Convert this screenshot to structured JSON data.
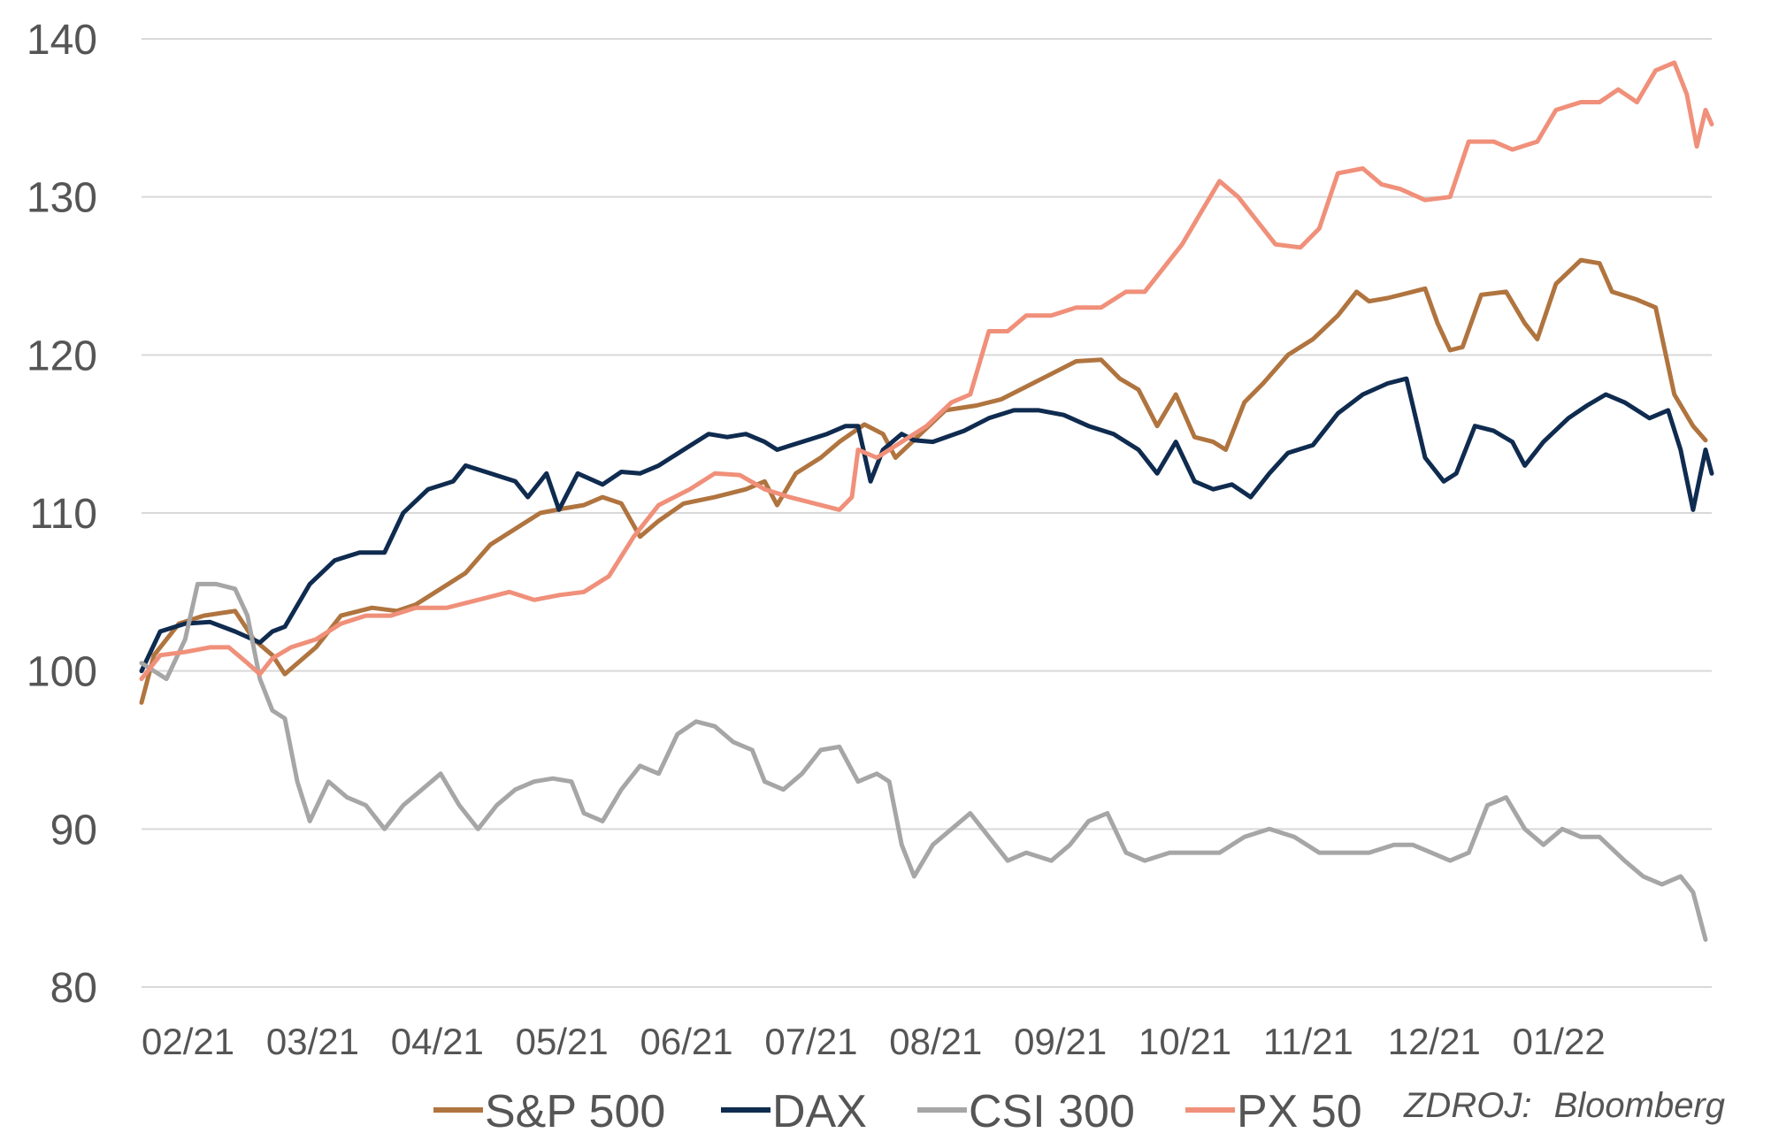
{
  "chart_data": {
    "type": "line",
    "title": "",
    "xlabel": "",
    "ylabel": "",
    "ylim": [
      80,
      140
    ],
    "yticks": [
      80,
      90,
      100,
      110,
      120,
      130,
      140
    ],
    "xtick_labels": [
      "02/21",
      "03/21",
      "04/21",
      "05/21",
      "06/21",
      "07/21",
      "08/21",
      "09/21",
      "10/21",
      "11/21",
      "12/21",
      "01/22"
    ],
    "grid": "horizontal",
    "legend_position": "bottom",
    "source_prefix": "ZDROJ:",
    "source_name": "Bloomberg",
    "series": [
      {
        "name": "S&P 500",
        "color": "#b0743f",
        "values": [
          [
            0,
            98
          ],
          [
            0.1,
            101
          ],
          [
            0.3,
            103
          ],
          [
            0.5,
            103.5
          ],
          [
            0.75,
            103.8
          ],
          [
            0.9,
            102
          ],
          [
            1.05,
            101
          ],
          [
            1.15,
            99.8
          ],
          [
            1.4,
            101.5
          ],
          [
            1.6,
            103.5
          ],
          [
            1.85,
            104
          ],
          [
            2.05,
            103.8
          ],
          [
            2.2,
            104.2
          ],
          [
            2.4,
            105.2
          ],
          [
            2.6,
            106.2
          ],
          [
            2.8,
            108
          ],
          [
            3.0,
            109
          ],
          [
            3.2,
            110
          ],
          [
            3.4,
            110.3
          ],
          [
            3.55,
            110.5
          ],
          [
            3.7,
            111
          ],
          [
            3.85,
            110.6
          ],
          [
            4.0,
            108.5
          ],
          [
            4.15,
            109.5
          ],
          [
            4.35,
            110.6
          ],
          [
            4.6,
            111
          ],
          [
            4.85,
            111.5
          ],
          [
            5.0,
            112
          ],
          [
            5.1,
            110.5
          ],
          [
            5.25,
            112.5
          ],
          [
            5.45,
            113.5
          ],
          [
            5.6,
            114.5
          ],
          [
            5.8,
            115.6
          ],
          [
            5.95,
            115
          ],
          [
            6.05,
            113.5
          ],
          [
            6.25,
            115
          ],
          [
            6.45,
            116.5
          ],
          [
            6.7,
            116.8
          ],
          [
            6.9,
            117.2
          ],
          [
            7.1,
            118
          ],
          [
            7.3,
            118.8
          ],
          [
            7.5,
            119.6
          ],
          [
            7.7,
            119.7
          ],
          [
            7.85,
            118.5
          ],
          [
            8.0,
            117.8
          ],
          [
            8.15,
            115.5
          ],
          [
            8.3,
            117.5
          ],
          [
            8.45,
            114.8
          ],
          [
            8.6,
            114.5
          ],
          [
            8.7,
            114
          ],
          [
            8.85,
            117
          ],
          [
            9.0,
            118.2
          ],
          [
            9.2,
            120
          ],
          [
            9.4,
            121
          ],
          [
            9.6,
            122.5
          ],
          [
            9.75,
            124
          ],
          [
            9.85,
            123.4
          ],
          [
            10.0,
            123.6
          ],
          [
            10.2,
            124
          ],
          [
            10.3,
            124.2
          ],
          [
            10.4,
            122
          ],
          [
            10.5,
            120.3
          ],
          [
            10.6,
            120.5
          ],
          [
            10.75,
            123.8
          ],
          [
            10.95,
            124
          ],
          [
            11.1,
            122
          ],
          [
            11.2,
            121
          ],
          [
            11.35,
            124.5
          ],
          [
            11.55,
            126
          ],
          [
            11.7,
            125.8
          ],
          [
            11.8,
            124
          ],
          [
            12.0,
            123.5
          ],
          [
            12.15,
            123
          ],
          [
            12.3,
            117.5
          ],
          [
            12.45,
            115.5
          ],
          [
            12.55,
            114.6
          ]
        ]
      },
      {
        "name": "DAX",
        "color": "#0f2b4f",
        "values": [
          [
            0,
            100
          ],
          [
            0.15,
            102.5
          ],
          [
            0.35,
            103
          ],
          [
            0.55,
            103.1
          ],
          [
            0.75,
            102.5
          ],
          [
            0.95,
            101.8
          ],
          [
            1.05,
            102.5
          ],
          [
            1.15,
            102.8
          ],
          [
            1.35,
            105.5
          ],
          [
            1.55,
            107
          ],
          [
            1.75,
            107.5
          ],
          [
            1.95,
            107.5
          ],
          [
            2.1,
            110
          ],
          [
            2.3,
            111.5
          ],
          [
            2.5,
            112
          ],
          [
            2.6,
            113
          ],
          [
            2.8,
            112.5
          ],
          [
            3.0,
            112
          ],
          [
            3.1,
            111
          ],
          [
            3.25,
            112.5
          ],
          [
            3.35,
            110.2
          ],
          [
            3.5,
            112.5
          ],
          [
            3.7,
            111.8
          ],
          [
            3.85,
            112.6
          ],
          [
            4.0,
            112.5
          ],
          [
            4.15,
            113
          ],
          [
            4.35,
            114
          ],
          [
            4.55,
            115
          ],
          [
            4.7,
            114.8
          ],
          [
            4.85,
            115
          ],
          [
            5.0,
            114.5
          ],
          [
            5.1,
            114
          ],
          [
            5.3,
            114.5
          ],
          [
            5.5,
            115
          ],
          [
            5.65,
            115.5
          ],
          [
            5.75,
            115.5
          ],
          [
            5.85,
            112
          ],
          [
            5.95,
            114
          ],
          [
            6.1,
            115
          ],
          [
            6.2,
            114.6
          ],
          [
            6.35,
            114.5
          ],
          [
            6.6,
            115.2
          ],
          [
            6.8,
            116
          ],
          [
            7.0,
            116.5
          ],
          [
            7.2,
            116.5
          ],
          [
            7.4,
            116.2
          ],
          [
            7.6,
            115.5
          ],
          [
            7.8,
            115
          ],
          [
            8.0,
            114
          ],
          [
            8.15,
            112.5
          ],
          [
            8.3,
            114.5
          ],
          [
            8.45,
            112
          ],
          [
            8.6,
            111.5
          ],
          [
            8.75,
            111.8
          ],
          [
            8.9,
            111
          ],
          [
            9.05,
            112.5
          ],
          [
            9.2,
            113.8
          ],
          [
            9.4,
            114.3
          ],
          [
            9.6,
            116.3
          ],
          [
            9.8,
            117.5
          ],
          [
            10.0,
            118.2
          ],
          [
            10.15,
            118.5
          ],
          [
            10.3,
            113.5
          ],
          [
            10.45,
            112
          ],
          [
            10.55,
            112.5
          ],
          [
            10.7,
            115.5
          ],
          [
            10.85,
            115.2
          ],
          [
            11.0,
            114.5
          ],
          [
            11.1,
            113
          ],
          [
            11.25,
            114.5
          ],
          [
            11.45,
            116
          ],
          [
            11.6,
            116.8
          ],
          [
            11.75,
            117.5
          ],
          [
            11.9,
            117
          ],
          [
            12.1,
            116
          ],
          [
            12.25,
            116.5
          ],
          [
            12.35,
            114
          ],
          [
            12.45,
            110.2
          ],
          [
            12.55,
            114
          ],
          [
            12.6,
            112.5
          ]
        ]
      },
      {
        "name": "CSI 300",
        "color": "#a6a6a6",
        "values": [
          [
            0,
            100.5
          ],
          [
            0.1,
            100
          ],
          [
            0.2,
            99.5
          ],
          [
            0.35,
            102
          ],
          [
            0.45,
            105.5
          ],
          [
            0.6,
            105.5
          ],
          [
            0.75,
            105.2
          ],
          [
            0.85,
            103.5
          ],
          [
            0.95,
            99.5
          ],
          [
            1.05,
            97.5
          ],
          [
            1.15,
            97
          ],
          [
            1.25,
            93
          ],
          [
            1.35,
            90.5
          ],
          [
            1.5,
            93
          ],
          [
            1.65,
            92
          ],
          [
            1.8,
            91.5
          ],
          [
            1.95,
            90
          ],
          [
            2.1,
            91.5
          ],
          [
            2.25,
            92.5
          ],
          [
            2.4,
            93.5
          ],
          [
            2.55,
            91.5
          ],
          [
            2.7,
            90
          ],
          [
            2.85,
            91.5
          ],
          [
            3.0,
            92.5
          ],
          [
            3.15,
            93
          ],
          [
            3.3,
            93.2
          ],
          [
            3.45,
            93
          ],
          [
            3.55,
            91
          ],
          [
            3.7,
            90.5
          ],
          [
            3.85,
            92.5
          ],
          [
            4.0,
            94
          ],
          [
            4.15,
            93.5
          ],
          [
            4.3,
            96
          ],
          [
            4.45,
            96.8
          ],
          [
            4.6,
            96.5
          ],
          [
            4.75,
            95.5
          ],
          [
            4.9,
            95
          ],
          [
            5.0,
            93
          ],
          [
            5.15,
            92.5
          ],
          [
            5.3,
            93.5
          ],
          [
            5.45,
            95
          ],
          [
            5.6,
            95.2
          ],
          [
            5.75,
            93
          ],
          [
            5.9,
            93.5
          ],
          [
            6.0,
            93
          ],
          [
            6.1,
            89
          ],
          [
            6.2,
            87
          ],
          [
            6.35,
            89
          ],
          [
            6.5,
            90
          ],
          [
            6.65,
            91
          ],
          [
            6.8,
            89.5
          ],
          [
            6.95,
            88
          ],
          [
            7.1,
            88.5
          ],
          [
            7.3,
            88
          ],
          [
            7.45,
            89
          ],
          [
            7.6,
            90.5
          ],
          [
            7.75,
            91
          ],
          [
            7.9,
            88.5
          ],
          [
            8.05,
            88
          ],
          [
            8.25,
            88.5
          ],
          [
            8.45,
            88.5
          ],
          [
            8.65,
            88.5
          ],
          [
            8.85,
            89.5
          ],
          [
            9.05,
            90
          ],
          [
            9.25,
            89.5
          ],
          [
            9.45,
            88.5
          ],
          [
            9.65,
            88.5
          ],
          [
            9.85,
            88.5
          ],
          [
            10.05,
            89
          ],
          [
            10.2,
            89
          ],
          [
            10.35,
            88.5
          ],
          [
            10.5,
            88
          ],
          [
            10.65,
            88.5
          ],
          [
            10.8,
            91.5
          ],
          [
            10.95,
            92
          ],
          [
            11.1,
            90
          ],
          [
            11.25,
            89
          ],
          [
            11.4,
            90
          ],
          [
            11.55,
            89.5
          ],
          [
            11.7,
            89.5
          ],
          [
            11.9,
            88
          ],
          [
            12.05,
            87
          ],
          [
            12.2,
            86.5
          ],
          [
            12.35,
            87
          ],
          [
            12.45,
            86
          ],
          [
            12.55,
            83
          ]
        ]
      },
      {
        "name": "PX 50",
        "color": "#f0907a",
        "values": [
          [
            0,
            99.5
          ],
          [
            0.15,
            101
          ],
          [
            0.35,
            101.2
          ],
          [
            0.55,
            101.5
          ],
          [
            0.7,
            101.5
          ],
          [
            0.85,
            100.5
          ],
          [
            0.95,
            99.8
          ],
          [
            1.05,
            100.8
          ],
          [
            1.2,
            101.5
          ],
          [
            1.4,
            102
          ],
          [
            1.6,
            103
          ],
          [
            1.8,
            103.5
          ],
          [
            2.0,
            103.5
          ],
          [
            2.2,
            104
          ],
          [
            2.45,
            104
          ],
          [
            2.7,
            104.5
          ],
          [
            2.95,
            105
          ],
          [
            3.15,
            104.5
          ],
          [
            3.35,
            104.8
          ],
          [
            3.55,
            105
          ],
          [
            3.75,
            106
          ],
          [
            3.95,
            108.5
          ],
          [
            4.15,
            110.5
          ],
          [
            4.4,
            111.5
          ],
          [
            4.6,
            112.5
          ],
          [
            4.8,
            112.4
          ],
          [
            5.0,
            111.5
          ],
          [
            5.2,
            111
          ],
          [
            5.45,
            110.5
          ],
          [
            5.6,
            110.2
          ],
          [
            5.7,
            111
          ],
          [
            5.75,
            114
          ],
          [
            5.9,
            113.5
          ],
          [
            6.1,
            114.5
          ],
          [
            6.3,
            115.5
          ],
          [
            6.5,
            117
          ],
          [
            6.65,
            117.5
          ],
          [
            6.8,
            121.5
          ],
          [
            6.95,
            121.5
          ],
          [
            7.1,
            122.5
          ],
          [
            7.3,
            122.5
          ],
          [
            7.5,
            123
          ],
          [
            7.7,
            123
          ],
          [
            7.9,
            124
          ],
          [
            8.05,
            124
          ],
          [
            8.2,
            125.5
          ],
          [
            8.35,
            127
          ],
          [
            8.5,
            129
          ],
          [
            8.65,
            131
          ],
          [
            8.8,
            130
          ],
          [
            8.95,
            128.5
          ],
          [
            9.1,
            127
          ],
          [
            9.3,
            126.8
          ],
          [
            9.45,
            128
          ],
          [
            9.6,
            131.5
          ],
          [
            9.8,
            131.8
          ],
          [
            9.95,
            130.8
          ],
          [
            10.1,
            130.5
          ],
          [
            10.3,
            129.8
          ],
          [
            10.5,
            130
          ],
          [
            10.65,
            133.5
          ],
          [
            10.85,
            133.5
          ],
          [
            11.0,
            133
          ],
          [
            11.2,
            133.5
          ],
          [
            11.35,
            135.5
          ],
          [
            11.55,
            136
          ],
          [
            11.7,
            136
          ],
          [
            11.85,
            136.8
          ],
          [
            12.0,
            136
          ],
          [
            12.15,
            138
          ],
          [
            12.3,
            138.5
          ],
          [
            12.4,
            136.5
          ],
          [
            12.48,
            133.2
          ],
          [
            12.55,
            135.5
          ],
          [
            12.6,
            134.6
          ]
        ]
      }
    ]
  }
}
